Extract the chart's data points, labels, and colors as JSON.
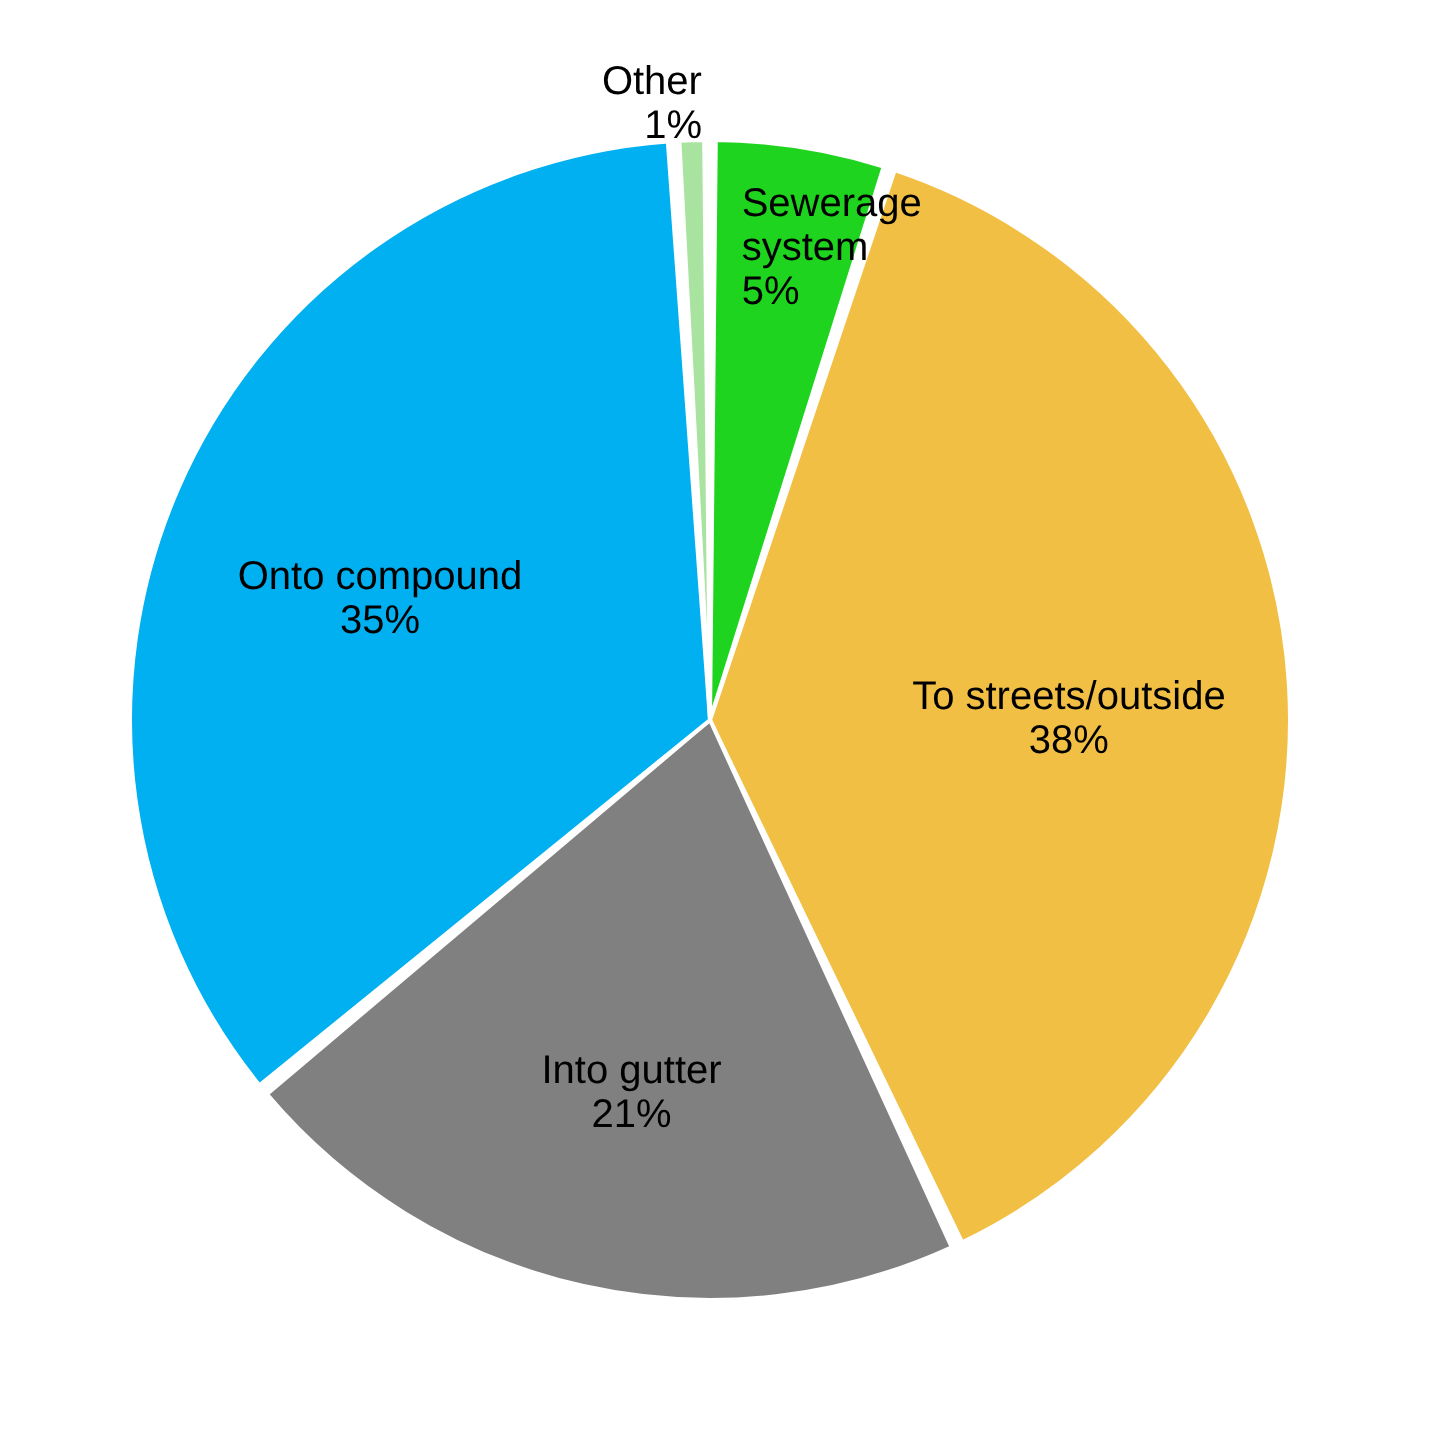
{
  "chart_data": {
    "type": "pie",
    "categories": [
      "Sewerage system",
      "To streets/outside",
      "Into gutter",
      "Onto compound",
      "Other"
    ],
    "values": [
      5,
      38,
      21,
      35,
      1
    ],
    "value_labels": [
      "5%",
      "38%",
      "21%",
      "35%",
      "1%"
    ],
    "colors": [
      "#1ed41e",
      "#f2bf45",
      "#808080",
      "#00b0f0",
      "#a8e4a0"
    ],
    "legend": false
  }
}
